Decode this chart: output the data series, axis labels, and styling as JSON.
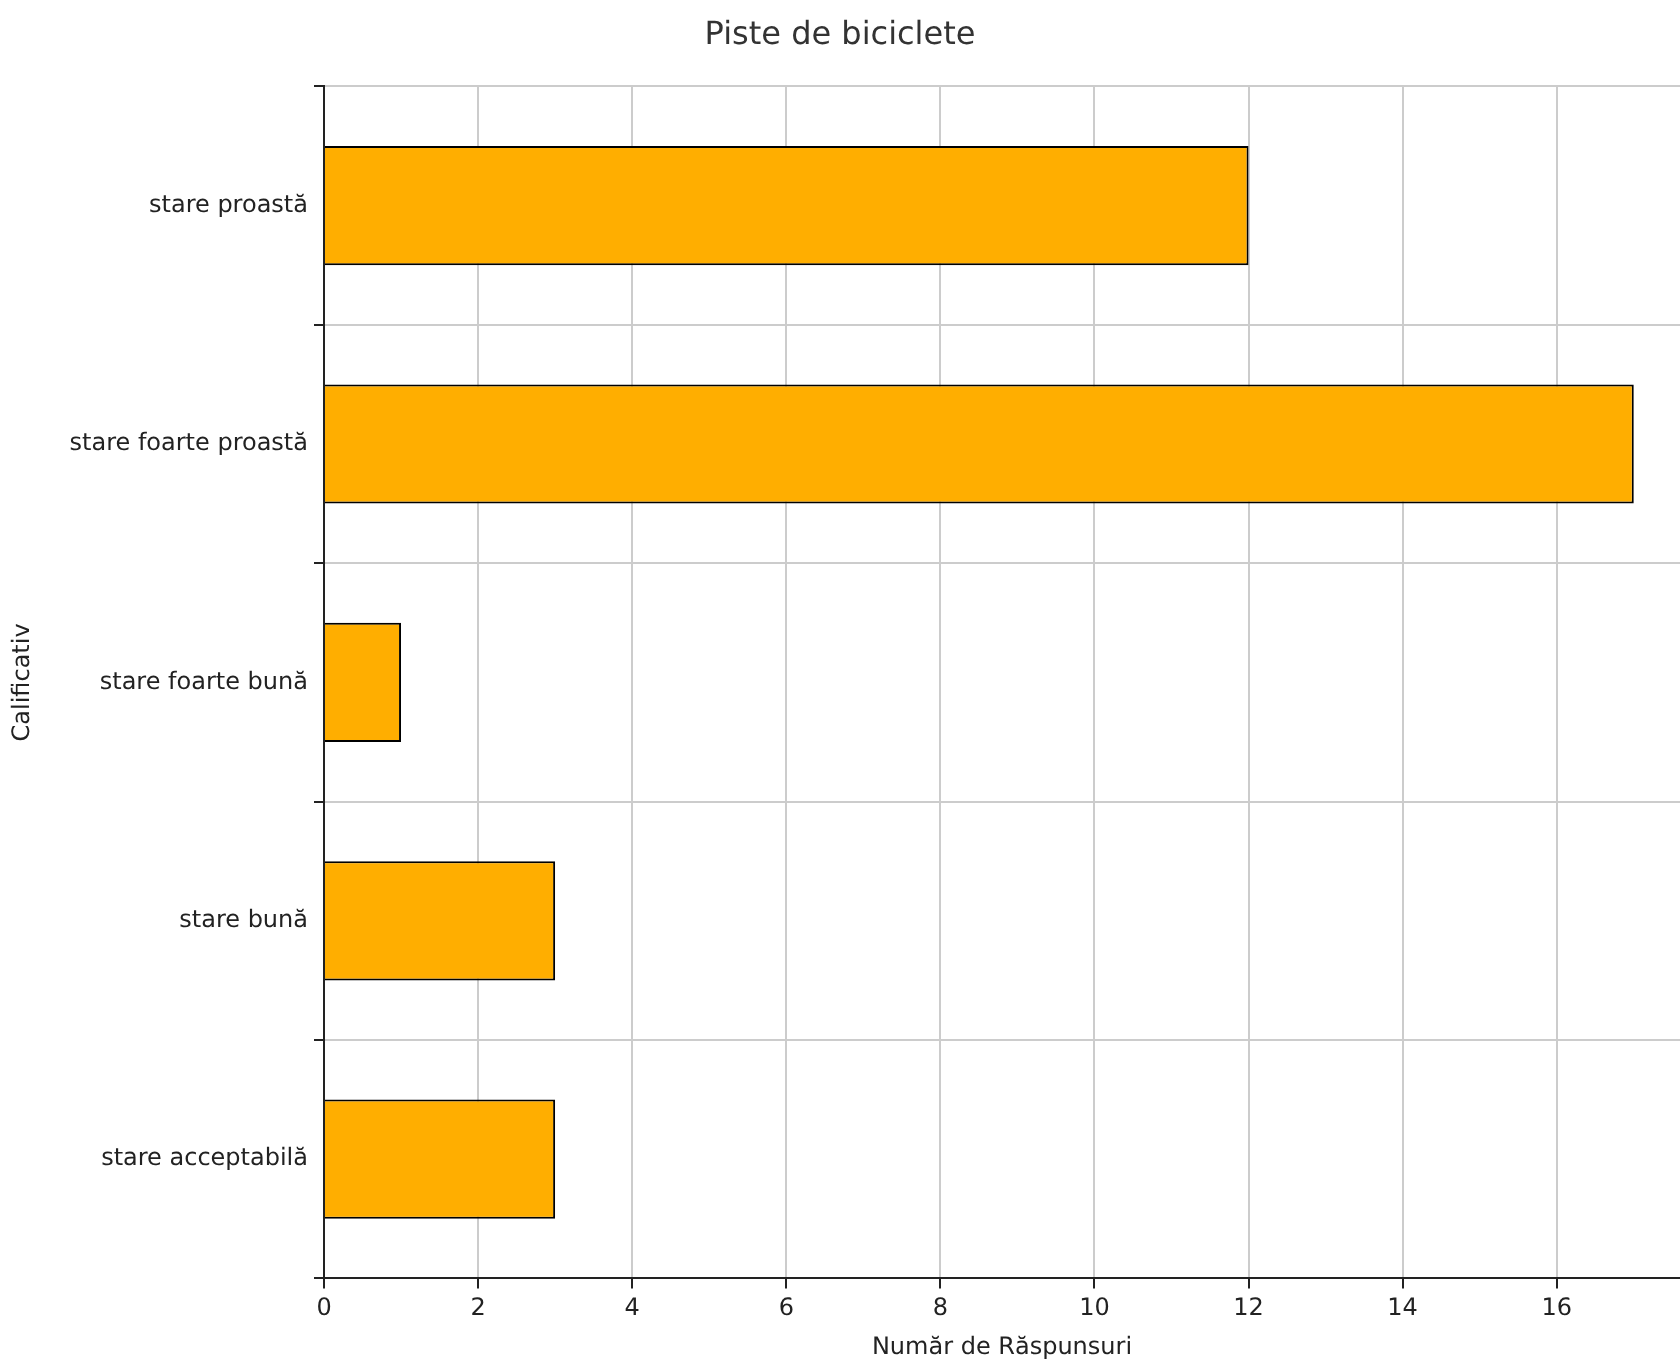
{
  "chart_data": {
    "type": "bar",
    "orientation": "horizontal",
    "title": "Piste de biciclete",
    "xlabel": "Număr de Răspunsuri",
    "ylabel": "Calificativ",
    "categories": [
      "stare proastă",
      "stare foarte proastă",
      "stare foarte bună",
      "stare bună",
      "stare acceptabilă"
    ],
    "values": [
      12,
      17,
      1,
      3,
      3
    ],
    "color": "#ffae00",
    "xlim": [
      0,
      17.6
    ],
    "xticks": [
      0,
      2,
      4,
      6,
      8,
      10,
      12,
      14,
      16
    ],
    "grid": true
  }
}
